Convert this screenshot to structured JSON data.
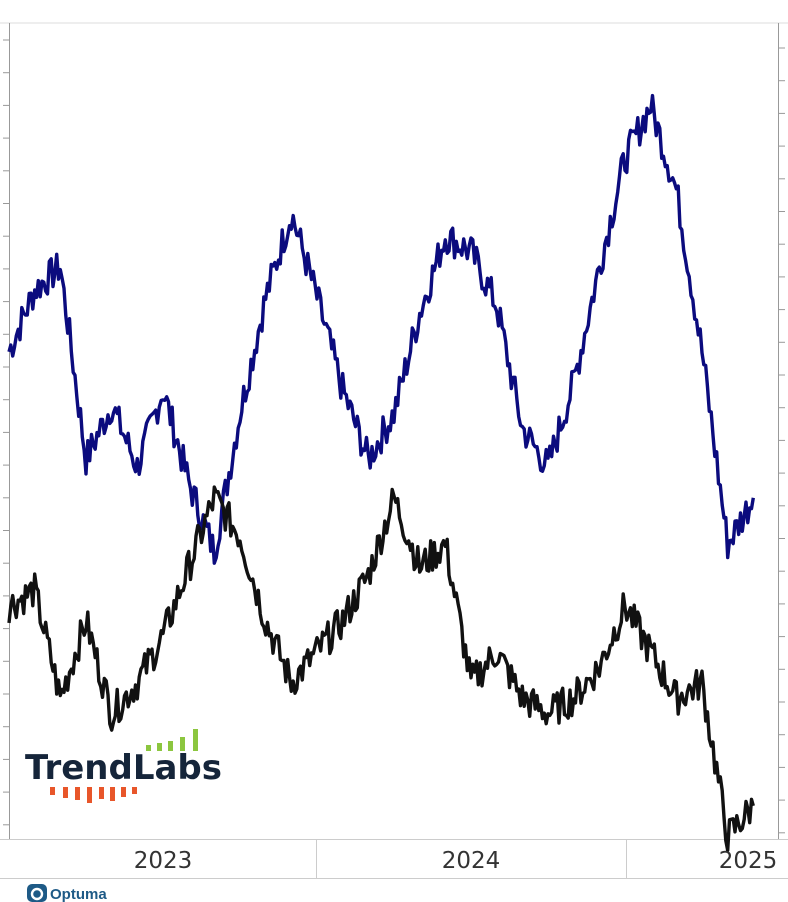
{
  "chart_data": {
    "type": "line",
    "title": "",
    "xlabel": "",
    "ylabel": "",
    "x_tick_labels": [
      "2023",
      "2024",
      "2025"
    ],
    "grid": false,
    "series": [
      {
        "color": "#0b0b7e",
        "x": [
          "2022-07",
          "2022-08",
          "2022-09",
          "2022-10",
          "2022-11",
          "2022-12",
          "2023-01",
          "2023-02",
          "2023-03",
          "2023-04",
          "2023-05",
          "2023-06",
          "2023-07",
          "2023-08",
          "2023-09",
          "2023-10",
          "2023-11",
          "2023-12",
          "2024-01",
          "2024-02",
          "2024-03",
          "2024-04",
          "2024-05",
          "2024-06",
          "2024-07",
          "2024-08",
          "2024-09",
          "2024-10",
          "2024-11",
          "2024-12"
        ],
        "values": [
          55,
          63,
          66,
          41,
          48,
          40,
          50,
          38,
          29,
          47,
          62,
          73,
          62,
          50,
          41,
          47,
          60,
          70,
          68,
          61,
          45,
          40,
          51,
          66,
          80,
          87,
          76,
          55,
          30,
          36
        ]
      },
      {
        "color": "#111111",
        "x": [
          "2022-07",
          "2022-08",
          "2022-09",
          "2022-10",
          "2022-11",
          "2022-12",
          "2023-01",
          "2023-02",
          "2023-03",
          "2023-04",
          "2023-05",
          "2023-06",
          "2023-07",
          "2023-08",
          "2023-09",
          "2023-10",
          "2023-11",
          "2023-12",
          "2024-01",
          "2024-02",
          "2024-03",
          "2024-04",
          "2024-05",
          "2024-06",
          "2024-07",
          "2024-08",
          "2024-09",
          "2024-10",
          "2024-11",
          "2024-12"
        ],
        "values": [
          22,
          24,
          10,
          20,
          8,
          12,
          18,
          27,
          36,
          31,
          20,
          12,
          16,
          20,
          26,
          36,
          27,
          30,
          12,
          16,
          10,
          8,
          10,
          14,
          22,
          16,
          10,
          12,
          -8,
          -4
        ]
      }
    ]
  },
  "logo": {
    "text": "TrendLabs",
    "text_color": "#15253a",
    "bar_color_top": "#8cc63f",
    "bar_color_bottom": "#e8562a"
  },
  "footer": {
    "brand": "Optuma",
    "icon": "optuma-logo-icon",
    "color": "#1e5a86"
  }
}
